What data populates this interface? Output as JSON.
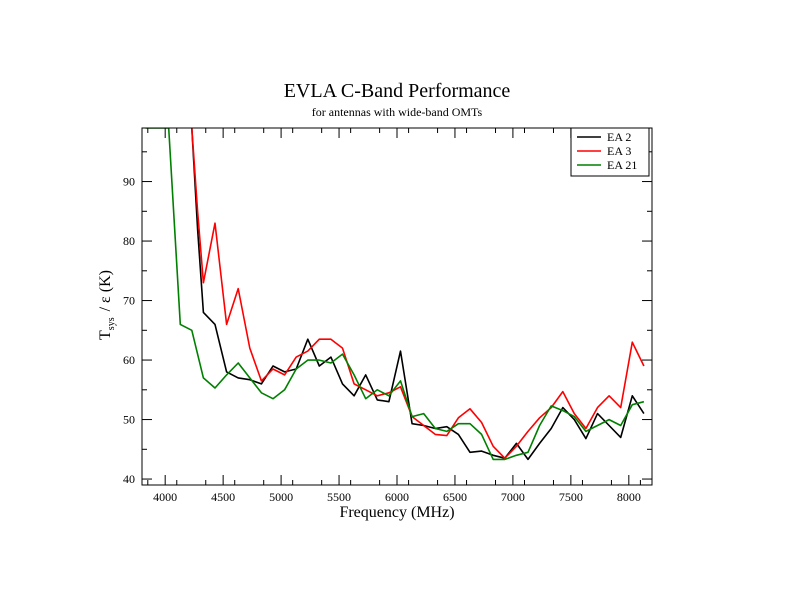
{
  "chart_data": {
    "type": "line",
    "title": "EVLA C-Band Performance",
    "subtitle": "for antennas with wide-band OMTs",
    "xlabel": "Frequency (MHz)",
    "ylabel_main": "T",
    "ylabel_sub": "sys",
    "ylabel_rest": "/ ε  (K)",
    "xlim": [
      3800,
      8200
    ],
    "ylim": [
      39,
      99
    ],
    "xticks": [
      4000,
      4500,
      5000,
      5500,
      6000,
      6500,
      7000,
      7500,
      8000
    ],
    "yticks": [
      40,
      50,
      60,
      70,
      80,
      90
    ],
    "grid": false,
    "legend_position": "top-right",
    "series": [
      {
        "name": "EA 2",
        "color": "#000000",
        "points": [
          [
            4230,
            99
          ],
          [
            4250,
            92
          ],
          [
            4280,
            82
          ],
          [
            4330,
            68
          ],
          [
            4430,
            66
          ],
          [
            4530,
            58
          ],
          [
            4630,
            57
          ],
          [
            4730,
            56.7
          ],
          [
            4830,
            56
          ],
          [
            4930,
            59
          ],
          [
            5030,
            58
          ],
          [
            5130,
            58.5
          ],
          [
            5230,
            63.5
          ],
          [
            5330,
            59
          ],
          [
            5430,
            60.5
          ],
          [
            5530,
            56
          ],
          [
            5630,
            54
          ],
          [
            5730,
            57.5
          ],
          [
            5830,
            53.3
          ],
          [
            5930,
            53
          ],
          [
            6030,
            61.5
          ],
          [
            6130,
            49.3
          ],
          [
            6230,
            49
          ],
          [
            6330,
            48.5
          ],
          [
            6430,
            48.8
          ],
          [
            6530,
            47.5
          ],
          [
            6630,
            44.5
          ],
          [
            6730,
            44.7
          ],
          [
            6830,
            44
          ],
          [
            6930,
            43.5
          ],
          [
            7030,
            46
          ],
          [
            7130,
            43.3
          ],
          [
            7230,
            46
          ],
          [
            7330,
            48.5
          ],
          [
            7430,
            52
          ],
          [
            7530,
            50
          ],
          [
            7630,
            46.8
          ],
          [
            7730,
            51
          ],
          [
            7830,
            49
          ],
          [
            7930,
            47
          ],
          [
            8030,
            54
          ],
          [
            8130,
            51
          ]
        ]
      },
      {
        "name": "EA 3",
        "color": "#ff0000",
        "points": [
          [
            4230,
            99
          ],
          [
            4280,
            85
          ],
          [
            4330,
            73
          ],
          [
            4430,
            83
          ],
          [
            4530,
            66
          ],
          [
            4630,
            72
          ],
          [
            4730,
            62
          ],
          [
            4830,
            56.5
          ],
          [
            4930,
            58.5
          ],
          [
            5030,
            57.5
          ],
          [
            5130,
            60.5
          ],
          [
            5230,
            61.5
          ],
          [
            5330,
            63.5
          ],
          [
            5430,
            63.5
          ],
          [
            5530,
            62
          ],
          [
            5630,
            56
          ],
          [
            5730,
            55
          ],
          [
            5830,
            54
          ],
          [
            5930,
            54.5
          ],
          [
            6030,
            55.5
          ],
          [
            6130,
            50.5
          ],
          [
            6230,
            49
          ],
          [
            6330,
            47.5
          ],
          [
            6430,
            47.3
          ],
          [
            6530,
            50.3
          ],
          [
            6630,
            51.8
          ],
          [
            6730,
            49.5
          ],
          [
            6830,
            45.5
          ],
          [
            6930,
            43.5
          ],
          [
            7030,
            45.5
          ],
          [
            7130,
            48
          ],
          [
            7230,
            50.3
          ],
          [
            7330,
            52
          ],
          [
            7430,
            54.7
          ],
          [
            7530,
            51
          ],
          [
            7630,
            48.5
          ],
          [
            7730,
            52
          ],
          [
            7830,
            54
          ],
          [
            7930,
            52
          ],
          [
            8030,
            63
          ],
          [
            8130,
            59
          ]
        ]
      },
      {
        "name": "EA 21",
        "color": "#008000",
        "points": [
          [
            3830,
            99
          ],
          [
            3930,
            99
          ],
          [
            4030,
            99
          ],
          [
            4130,
            66
          ],
          [
            4230,
            65
          ],
          [
            4330,
            57
          ],
          [
            4430,
            55.3
          ],
          [
            4530,
            57.5
          ],
          [
            4630,
            59.5
          ],
          [
            4730,
            57
          ],
          [
            4830,
            54.5
          ],
          [
            4930,
            53.5
          ],
          [
            5030,
            55
          ],
          [
            5130,
            58.5
          ],
          [
            5230,
            60
          ],
          [
            5330,
            60
          ],
          [
            5430,
            59.5
          ],
          [
            5530,
            61
          ],
          [
            5630,
            57.5
          ],
          [
            5730,
            53.5
          ],
          [
            5830,
            55
          ],
          [
            5930,
            54
          ],
          [
            6030,
            56.5
          ],
          [
            6130,
            50.5
          ],
          [
            6230,
            51
          ],
          [
            6330,
            48.5
          ],
          [
            6430,
            48
          ],
          [
            6530,
            49.3
          ],
          [
            6630,
            49.3
          ],
          [
            6730,
            47.5
          ],
          [
            6830,
            43.3
          ],
          [
            6930,
            43.3
          ],
          [
            7030,
            44
          ],
          [
            7130,
            44.5
          ],
          [
            7230,
            49
          ],
          [
            7330,
            52.3
          ],
          [
            7430,
            51.5
          ],
          [
            7530,
            50.5
          ],
          [
            7630,
            48
          ],
          [
            7730,
            49
          ],
          [
            7830,
            50
          ],
          [
            7930,
            49
          ],
          [
            8030,
            52.5
          ],
          [
            8130,
            53
          ]
        ]
      }
    ]
  }
}
